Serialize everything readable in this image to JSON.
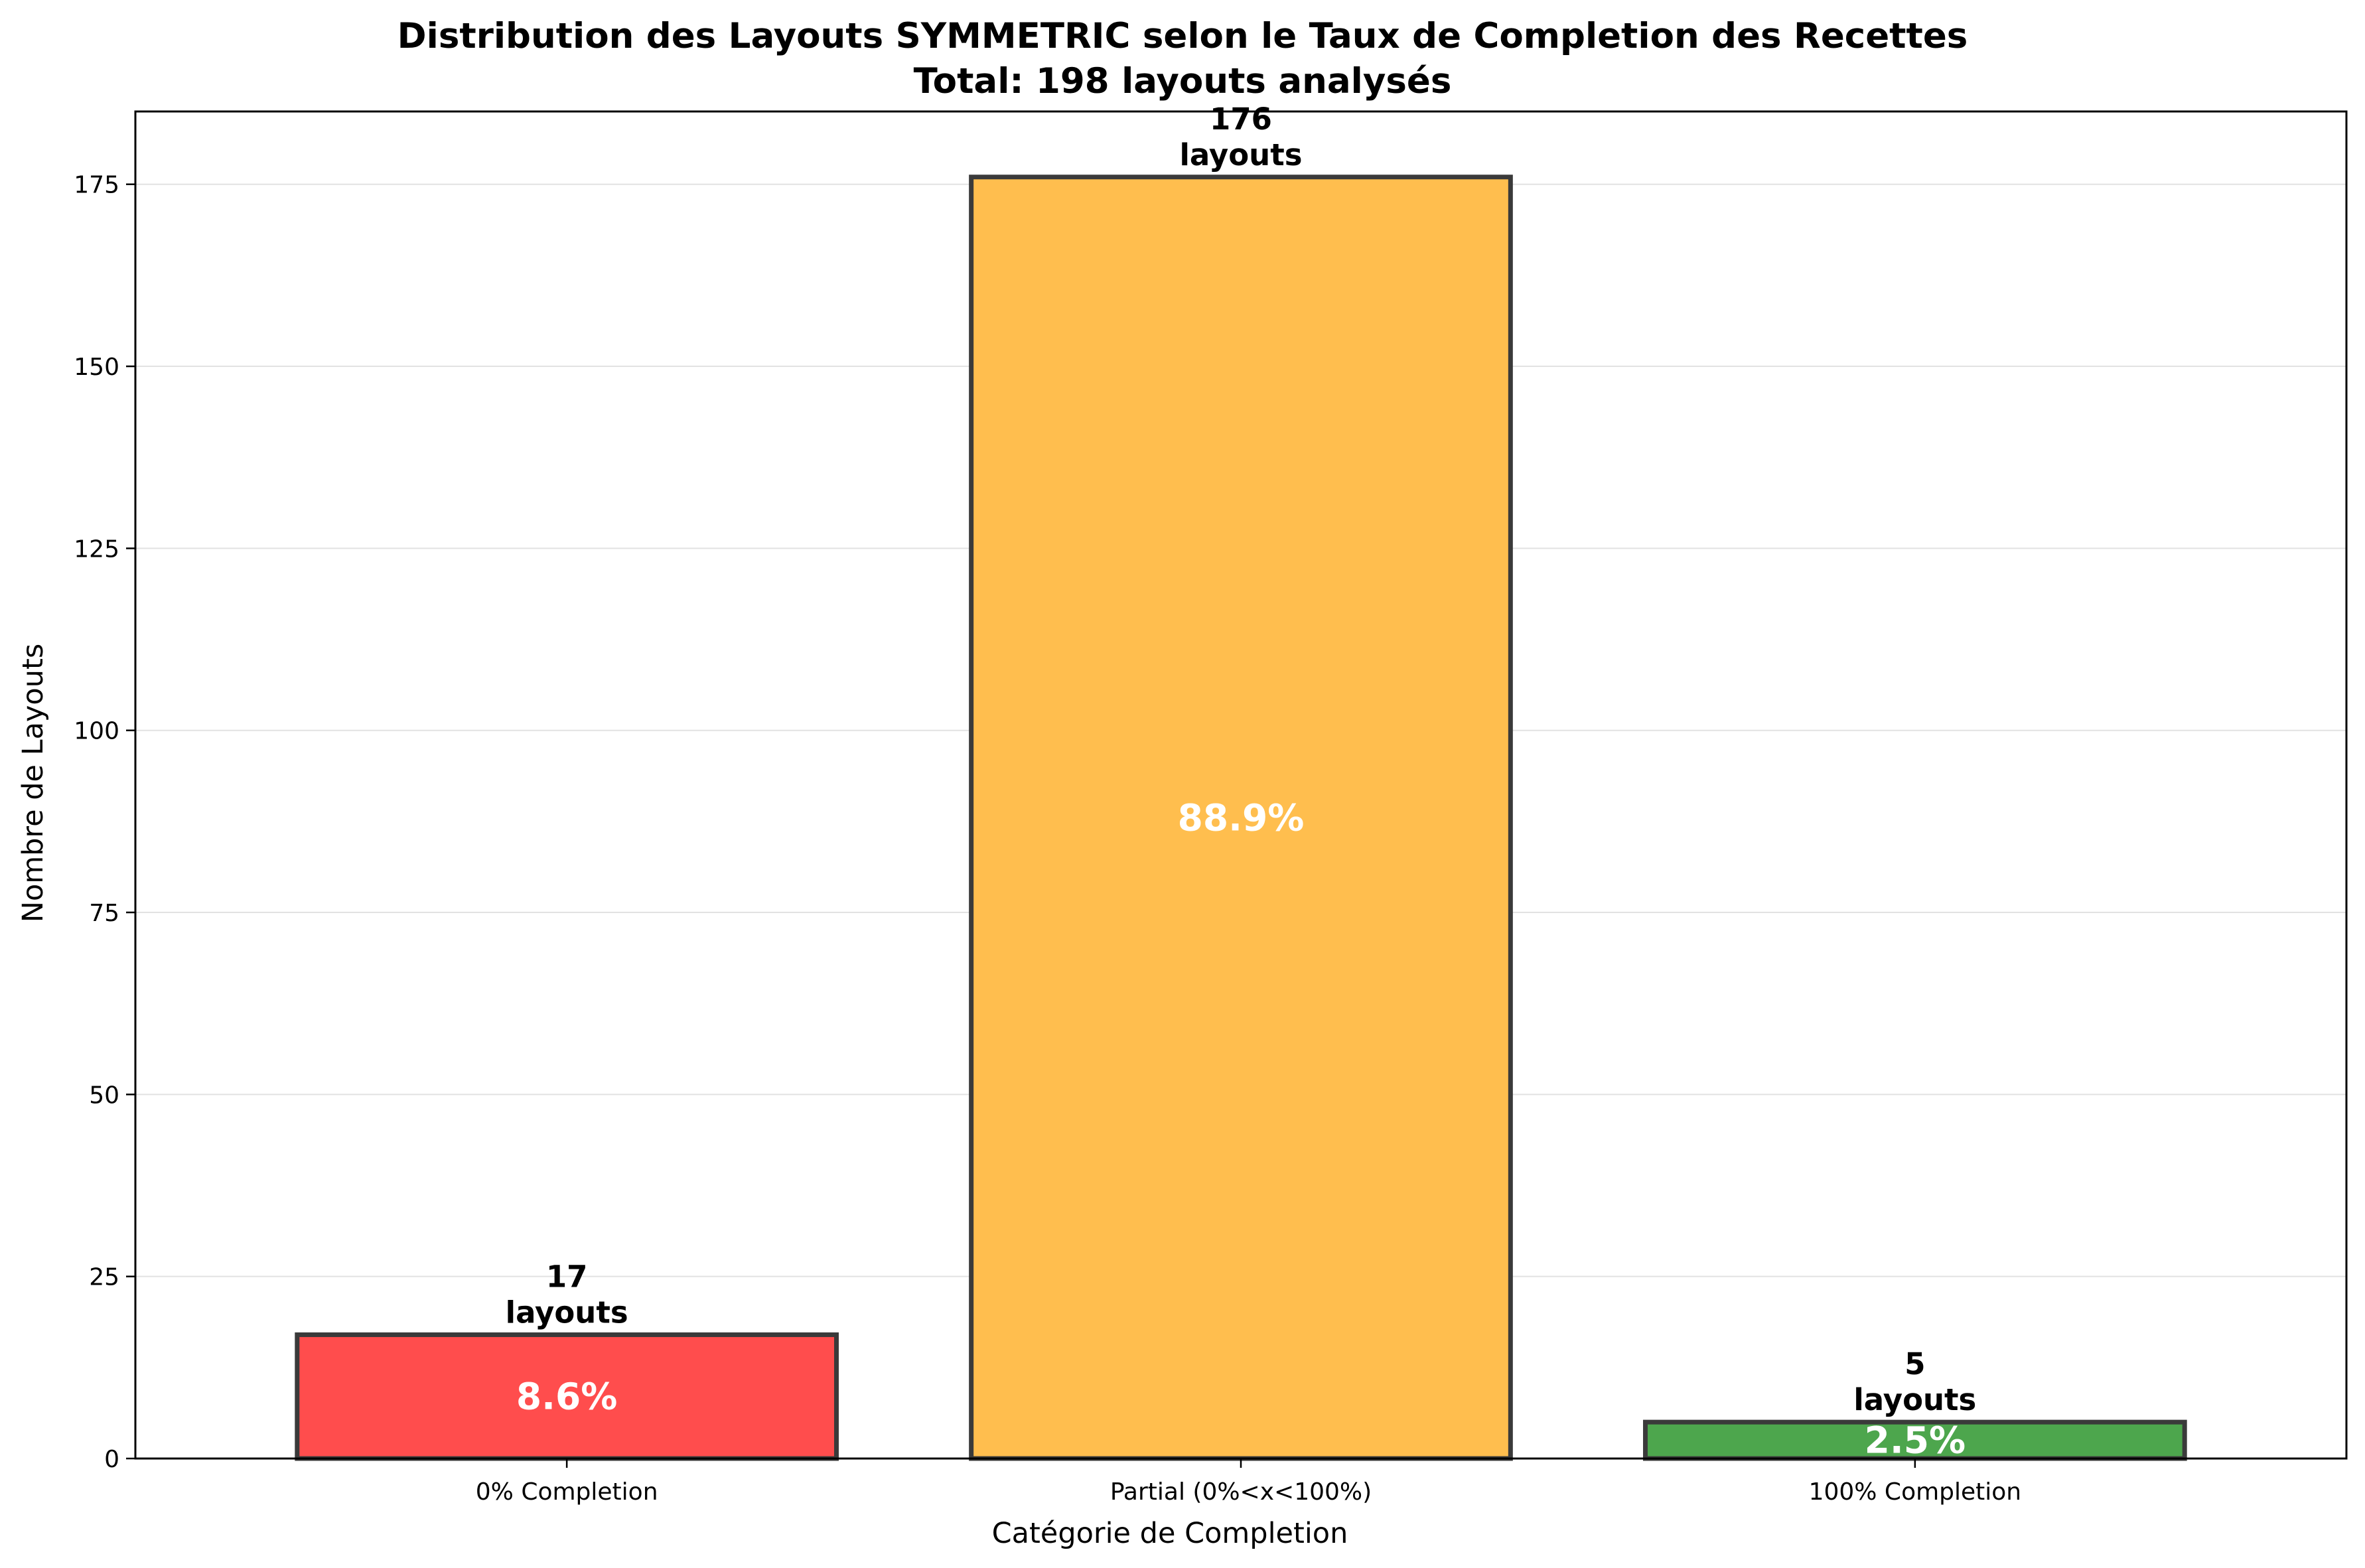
{
  "chart_data": {
    "type": "bar",
    "title": "Distribution des Layouts SYMMETRIC selon le Taux de Completion des Recettes",
    "subtitle": "Total: 198 layouts analysés",
    "xlabel": "Catégorie de Completion",
    "ylabel": "Nombre de Layouts",
    "ylim": [
      0,
      185
    ],
    "yticks": [
      0,
      25,
      50,
      75,
      100,
      125,
      150,
      175
    ],
    "grid": "horizontal",
    "categories": [
      "0% Completion",
      "Partial (0%<x<100%)",
      "100% Completion"
    ],
    "values": [
      17,
      176,
      5
    ],
    "value_labels": [
      [
        "17",
        "layouts"
      ],
      [
        "176",
        "layouts"
      ],
      [
        "5",
        "layouts"
      ]
    ],
    "percent_labels": [
      "8.6%",
      "88.9%",
      "2.5%"
    ],
    "colors": [
      "#ff4d4d",
      "#ffbe4e",
      "#4da64d"
    ],
    "edge_color": "#3a3a3a"
  }
}
